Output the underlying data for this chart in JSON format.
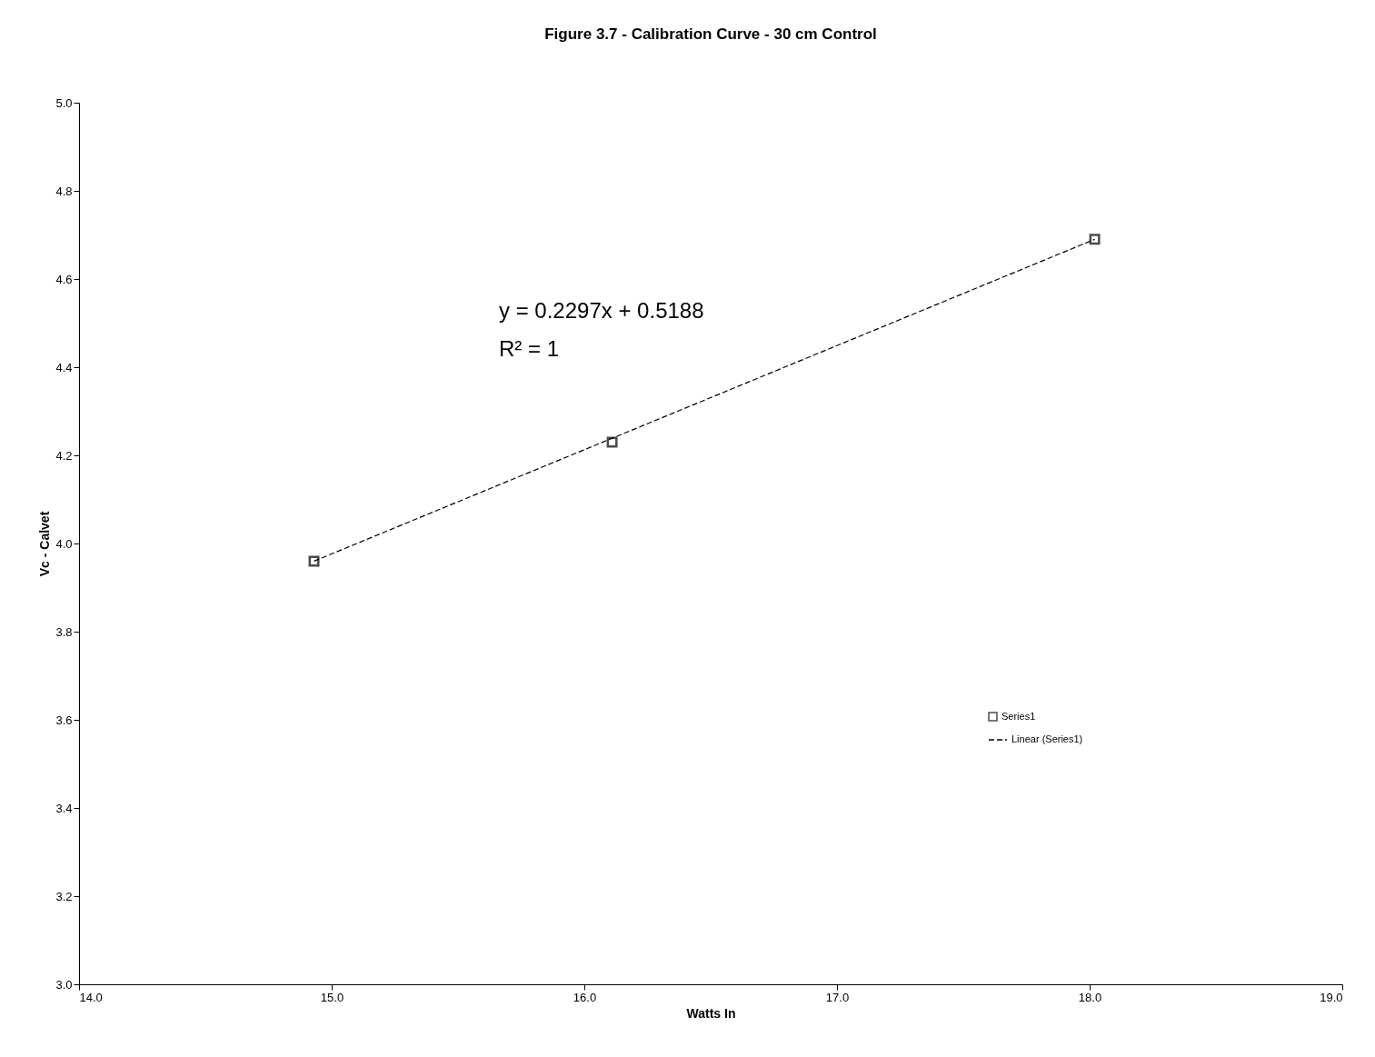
{
  "chart_data": {
    "type": "scatter",
    "title": "Figure 3.7 - Calibration Curve - 30 cm Control",
    "xlabel": "Watts In",
    "ylabel": "Vc - Calvet",
    "x": [
      14.93,
      16.11,
      18.02
    ],
    "series": [
      {
        "name": "Series1",
        "type": "scatter",
        "color": "#000000",
        "marker": "square",
        "values": [
          3.96,
          4.23,
          4.69
        ]
      },
      {
        "name": "Linear (Series1)",
        "type": "line",
        "color": "#000000",
        "line_style": "dashed",
        "x": [
          14.93,
          18.02
        ],
        "values": [
          3.96,
          4.69
        ]
      }
    ],
    "xlim": [
      14,
      19
    ],
    "xticks": [
      {
        "value": 14,
        "label": "14.0"
      },
      {
        "value": 15,
        "label": "15.0"
      },
      {
        "value": 16,
        "label": "16.0"
      },
      {
        "value": 17,
        "label": "17.0"
      },
      {
        "value": 18,
        "label": "18.0"
      },
      {
        "value": 19,
        "label": "19.0"
      }
    ],
    "ylim": [
      3,
      5
    ],
    "yticks": [
      {
        "value": 3,
        "label": "3.0"
      },
      {
        "value": 3.2,
        "label": "3.2"
      },
      {
        "value": 3.4,
        "label": "3.4"
      },
      {
        "value": 3.6,
        "label": "3.6"
      },
      {
        "value": 3.8,
        "label": "3.8"
      },
      {
        "value": 4,
        "label": "4.0"
      },
      {
        "value": 4.2,
        "label": "4.2"
      },
      {
        "value": 4.4,
        "label": "4.4"
      },
      {
        "value": 4.6,
        "label": "4.6"
      },
      {
        "value": 4.8,
        "label": "4.8"
      },
      {
        "value": 5,
        "label": "5.0"
      }
    ],
    "annotations": [
      "y = 0.2297x + 0.5188",
      "R² = 1"
    ],
    "grid": false,
    "legend": "right"
  }
}
